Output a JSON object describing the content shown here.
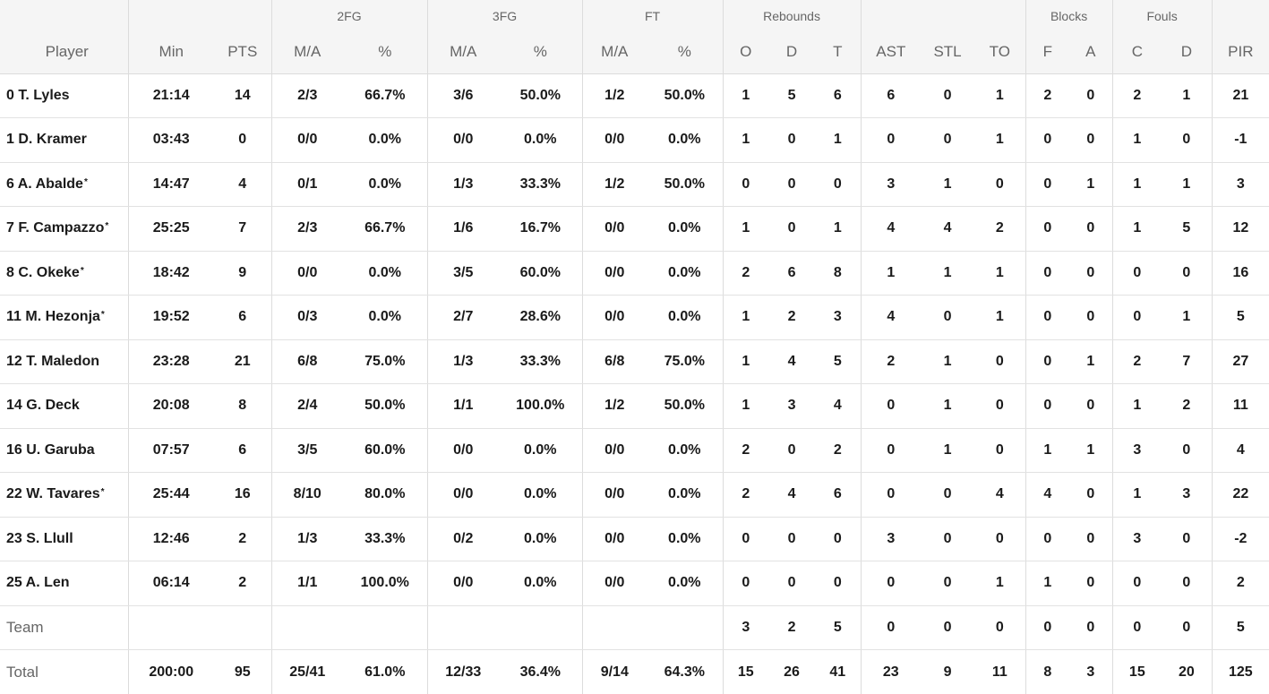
{
  "headers": {
    "groups": {
      "fg2": "2FG",
      "fg3": "3FG",
      "ft": "FT",
      "reb": "Rebounds",
      "blk": "Blocks",
      "fouls": "Fouls"
    },
    "columns": [
      "Player",
      "Min",
      "PTS",
      "M/A",
      "%",
      "M/A",
      "%",
      "M/A",
      "%",
      "O",
      "D",
      "T",
      "AST",
      "STL",
      "TO",
      "F",
      "A",
      "C",
      "D",
      "PIR"
    ]
  },
  "players": [
    {
      "name": "0 T. Lyles",
      "starter": false,
      "cells": [
        "21:14",
        "14",
        "2/3",
        "66.7%",
        "3/6",
        "50.0%",
        "1/2",
        "50.0%",
        "1",
        "5",
        "6",
        "6",
        "0",
        "1",
        "2",
        "0",
        "2",
        "1",
        "21"
      ]
    },
    {
      "name": "1 D. Kramer",
      "starter": false,
      "cells": [
        "03:43",
        "0",
        "0/0",
        "0.0%",
        "0/0",
        "0.0%",
        "0/0",
        "0.0%",
        "1",
        "0",
        "1",
        "0",
        "0",
        "1",
        "0",
        "0",
        "1",
        "0",
        "-1"
      ]
    },
    {
      "name": "6 A. Abalde",
      "starter": true,
      "cells": [
        "14:47",
        "4",
        "0/1",
        "0.0%",
        "1/3",
        "33.3%",
        "1/2",
        "50.0%",
        "0",
        "0",
        "0",
        "3",
        "1",
        "0",
        "0",
        "1",
        "1",
        "1",
        "3"
      ]
    },
    {
      "name": "7 F. Campazzo",
      "starter": true,
      "cells": [
        "25:25",
        "7",
        "2/3",
        "66.7%",
        "1/6",
        "16.7%",
        "0/0",
        "0.0%",
        "1",
        "0",
        "1",
        "4",
        "4",
        "2",
        "0",
        "0",
        "1",
        "5",
        "12"
      ]
    },
    {
      "name": "8 C. Okeke",
      "starter": true,
      "cells": [
        "18:42",
        "9",
        "0/0",
        "0.0%",
        "3/5",
        "60.0%",
        "0/0",
        "0.0%",
        "2",
        "6",
        "8",
        "1",
        "1",
        "1",
        "0",
        "0",
        "0",
        "0",
        "16"
      ]
    },
    {
      "name": "11 M. Hezonja",
      "starter": true,
      "cells": [
        "19:52",
        "6",
        "0/3",
        "0.0%",
        "2/7",
        "28.6%",
        "0/0",
        "0.0%",
        "1",
        "2",
        "3",
        "4",
        "0",
        "1",
        "0",
        "0",
        "0",
        "1",
        "5"
      ]
    },
    {
      "name": "12 T. Maledon",
      "starter": false,
      "cells": [
        "23:28",
        "21",
        "6/8",
        "75.0%",
        "1/3",
        "33.3%",
        "6/8",
        "75.0%",
        "1",
        "4",
        "5",
        "2",
        "1",
        "0",
        "0",
        "1",
        "2",
        "7",
        "27"
      ]
    },
    {
      "name": "14 G. Deck",
      "starter": false,
      "cells": [
        "20:08",
        "8",
        "2/4",
        "50.0%",
        "1/1",
        "100.0%",
        "1/2",
        "50.0%",
        "1",
        "3",
        "4",
        "0",
        "1",
        "0",
        "0",
        "0",
        "1",
        "2",
        "11"
      ]
    },
    {
      "name": "16 U. Garuba",
      "starter": false,
      "cells": [
        "07:57",
        "6",
        "3/5",
        "60.0%",
        "0/0",
        "0.0%",
        "0/0",
        "0.0%",
        "2",
        "0",
        "2",
        "0",
        "1",
        "0",
        "1",
        "1",
        "3",
        "0",
        "4"
      ]
    },
    {
      "name": "22 W. Tavares",
      "starter": true,
      "cells": [
        "25:44",
        "16",
        "8/10",
        "80.0%",
        "0/0",
        "0.0%",
        "0/0",
        "0.0%",
        "2",
        "4",
        "6",
        "0",
        "0",
        "4",
        "4",
        "0",
        "1",
        "3",
        "22"
      ]
    },
    {
      "name": "23 S. Llull",
      "starter": false,
      "cells": [
        "12:46",
        "2",
        "1/3",
        "33.3%",
        "0/2",
        "0.0%",
        "0/0",
        "0.0%",
        "0",
        "0",
        "0",
        "3",
        "0",
        "0",
        "0",
        "0",
        "3",
        "0",
        "-2"
      ]
    },
    {
      "name": "25 A. Len",
      "starter": false,
      "cells": [
        "06:14",
        "2",
        "1/1",
        "100.0%",
        "0/0",
        "0.0%",
        "0/0",
        "0.0%",
        "0",
        "0",
        "0",
        "0",
        "0",
        "1",
        "1",
        "0",
        "0",
        "0",
        "2"
      ]
    }
  ],
  "team": {
    "name": "Team",
    "cells": [
      "",
      "",
      "",
      "",
      "",
      "",
      "",
      "",
      "3",
      "2",
      "5",
      "0",
      "0",
      "0",
      "0",
      "0",
      "0",
      "0",
      "5"
    ]
  },
  "total": {
    "name": "Total",
    "cells": [
      "200:00",
      "95",
      "25/41",
      "61.0%",
      "12/33",
      "36.4%",
      "9/14",
      "64.3%",
      "15",
      "26",
      "41",
      "23",
      "9",
      "11",
      "8",
      "3",
      "15",
      "20",
      "125"
    ]
  },
  "starter_mark": "*"
}
